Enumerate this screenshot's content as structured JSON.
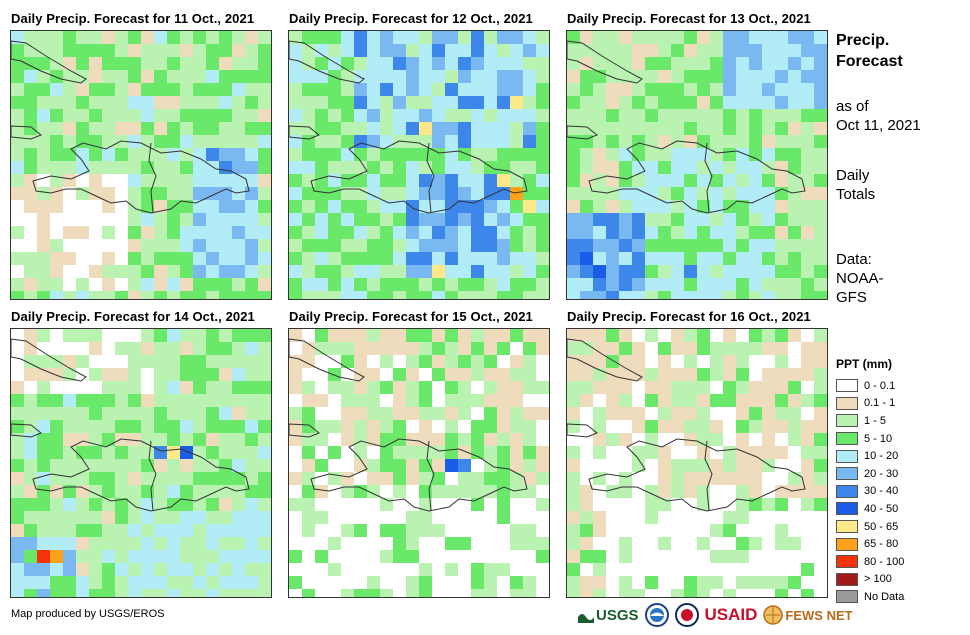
{
  "panels": [
    {
      "title": "Daily Precip. Forecast for 11 Oct., 2021",
      "seed": 11,
      "profile": "d11"
    },
    {
      "title": "Daily Precip. Forecast for 12 Oct., 2021",
      "seed": 12,
      "profile": "d12"
    },
    {
      "title": "Daily Precip. Forecast for 13 Oct., 2021",
      "seed": 13,
      "profile": "d13"
    },
    {
      "title": "Daily Precip. Forecast for 14 Oct., 2021",
      "seed": 14,
      "profile": "d14"
    },
    {
      "title": "Daily Precip. Forecast for 15 Oct., 2021",
      "seed": 15,
      "profile": "d15"
    },
    {
      "title": "Daily Precip. Forecast for 16 Oct., 2021",
      "seed": 16,
      "profile": "d16"
    }
  ],
  "side": {
    "title_line1": "Precip.",
    "title_line2": "Forecast",
    "asof_line1": "as of",
    "asof_line2": "Oct 11, 2021",
    "totals_line1": "Daily",
    "totals_line2": "Totals",
    "data_line1": "Data:",
    "data_line2": "NOAA-",
    "data_line3": "GFS"
  },
  "legend": {
    "title": "PPT (mm)",
    "items": [
      {
        "label": "0 - 0.1",
        "color": "#ffffff"
      },
      {
        "label": "0.1 - 1",
        "color": "#eedcbd"
      },
      {
        "label": "1 - 5",
        "color": "#b9f2b1"
      },
      {
        "label": "5 - 10",
        "color": "#6ae86a"
      },
      {
        "label": "10 - 20",
        "color": "#b2ecf6"
      },
      {
        "label": "20 - 30",
        "color": "#7ab8f2"
      },
      {
        "label": "30 - 40",
        "color": "#3d86ea"
      },
      {
        "label": "40 - 50",
        "color": "#1a5ce8"
      },
      {
        "label": "50 - 65",
        "color": "#fde98a"
      },
      {
        "label": "65 - 80",
        "color": "#fba21a"
      },
      {
        "label": "80 - 100",
        "color": "#f5320c"
      },
      {
        "label": "> 100",
        "color": "#a31a1a"
      },
      {
        "label": "No Data",
        "color": "#999999"
      }
    ]
  },
  "footer": {
    "credit": "Map produced by USGS/EROS",
    "logo_usgs": "USGS",
    "logo_usaid": "USAID",
    "logo_fewsnet": "FEWS NET"
  }
}
